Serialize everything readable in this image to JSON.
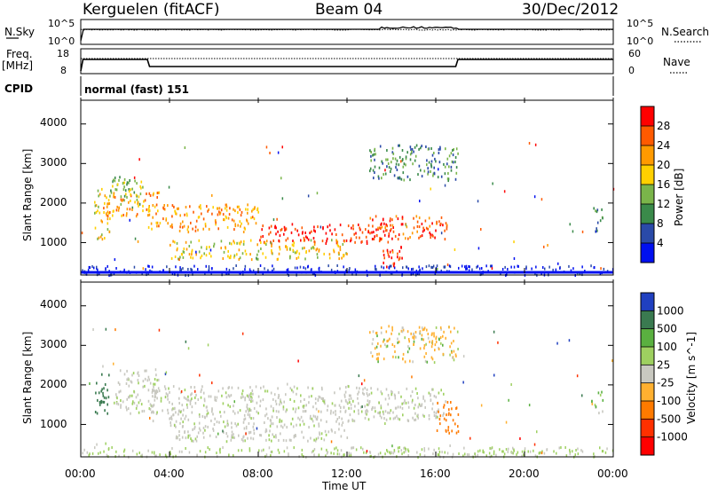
{
  "header": {
    "station": "Kerguelen (fitACF)",
    "beam": "Beam 04",
    "date": "30/Dec/2012"
  },
  "top_panels": {
    "nsky": {
      "label": "N.Sky",
      "ticks_left": [
        "10^5",
        "10^0"
      ],
      "ticks_right": [
        "10^5",
        "10^0"
      ],
      "right_label": "N.Search"
    },
    "freq": {
      "label_line1": "Freq.",
      "label_line2": "[MHz]",
      "ticks_left": [
        "18",
        "8"
      ],
      "ticks_right": [
        "60",
        "0"
      ],
      "right_label": "Nave"
    },
    "cpid": {
      "label": "CPID",
      "value": "normal (fast) 151"
    }
  },
  "chart_data": [
    {
      "type": "heatmap",
      "name": "power",
      "ylabel": "Slant Range [km]",
      "xlabel": "Time UT",
      "yticks": [
        "4000",
        "3000",
        "2000",
        "1000"
      ],
      "ylim": [
        180,
        4600
      ],
      "colorbar": {
        "label": "Power [dB]",
        "ticks": [
          "28",
          "24",
          "20",
          "16",
          "12",
          "8",
          "4"
        ],
        "colors": [
          "#ff0000",
          "#ff5a00",
          "#ff9a00",
          "#ffd000",
          "#7ab54a",
          "#3a8a4a",
          "#2a4aa8",
          "#0010f0"
        ]
      },
      "regions": [
        {
          "t": [
            0.6,
            1.3
          ],
          "r": [
            1100,
            2400
          ],
          "level": 16
        },
        {
          "t": [
            1.3,
            2.8
          ],
          "r": [
            1900,
            2700
          ],
          "level": 12
        },
        {
          "t": [
            1.0,
            3.5
          ],
          "r": [
            1700,
            2300
          ],
          "level": 20
        },
        {
          "t": [
            3.0,
            8.0
          ],
          "r": [
            1300,
            2000
          ],
          "level": 20
        },
        {
          "t": [
            8.0,
            14.0
          ],
          "r": [
            1000,
            1500
          ],
          "level": 28
        },
        {
          "t": [
            13.0,
            16.5
          ],
          "r": [
            1100,
            1700
          ],
          "level": 24
        },
        {
          "t": [
            4.0,
            12.0
          ],
          "r": [
            600,
            1100
          ],
          "level": 16
        },
        {
          "t": [
            13.5,
            14.5
          ],
          "r": [
            400,
            1000
          ],
          "level": 28
        },
        {
          "t": [
            13.0,
            17.0
          ],
          "r": [
            2600,
            3500
          ],
          "level": 8
        },
        {
          "t": [
            23.0,
            23.5
          ],
          "r": [
            1300,
            1900
          ],
          "level": 8
        }
      ]
    },
    {
      "type": "heatmap",
      "name": "velocity",
      "ylabel": "Slant Range [km]",
      "xlabel": "Time UT",
      "yticks": [
        "4000",
        "3000",
        "2000",
        "1000"
      ],
      "ylim": [
        180,
        4600
      ],
      "colorbar": {
        "label": "Velocity [m s^-1]",
        "ticks": [
          "1000",
          "500",
          "100",
          "25",
          "-25",
          "-100",
          "-500",
          "-1000"
        ],
        "colors": [
          "#2040c0",
          "#3a7a50",
          "#5ab040",
          "#9ed060",
          "#c8c8c0",
          "#ffb030",
          "#ff7a00",
          "#ff3000",
          "#ff0000"
        ]
      },
      "regions": [
        {
          "t": [
            0.6,
            1.3
          ],
          "r": [
            1300,
            2300
          ],
          "velocity": 500
        },
        {
          "t": [
            1.5,
            3.5
          ],
          "r": [
            1300,
            2400
          ],
          "velocity": 0
        },
        {
          "t": [
            3.0,
            16.5
          ],
          "r": [
            1100,
            2000
          ],
          "velocity": 0
        },
        {
          "t": [
            4.0,
            12.0
          ],
          "r": [
            600,
            1100
          ],
          "velocity": 0
        },
        {
          "t": [
            16.0,
            17.0
          ],
          "r": [
            800,
            1600
          ],
          "velocity": -500
        },
        {
          "t": [
            13.0,
            17.0
          ],
          "r": [
            2600,
            3500
          ],
          "velocity": -100
        },
        {
          "t": [
            23.0,
            23.5
          ],
          "r": [
            1300,
            1900
          ],
          "velocity": 100
        }
      ],
      "xticks": [
        "00:00",
        "04:00",
        "08:00",
        "12:00",
        "16:00",
        "20:00",
        "00:00"
      ],
      "xlim": [
        0,
        24
      ]
    }
  ]
}
